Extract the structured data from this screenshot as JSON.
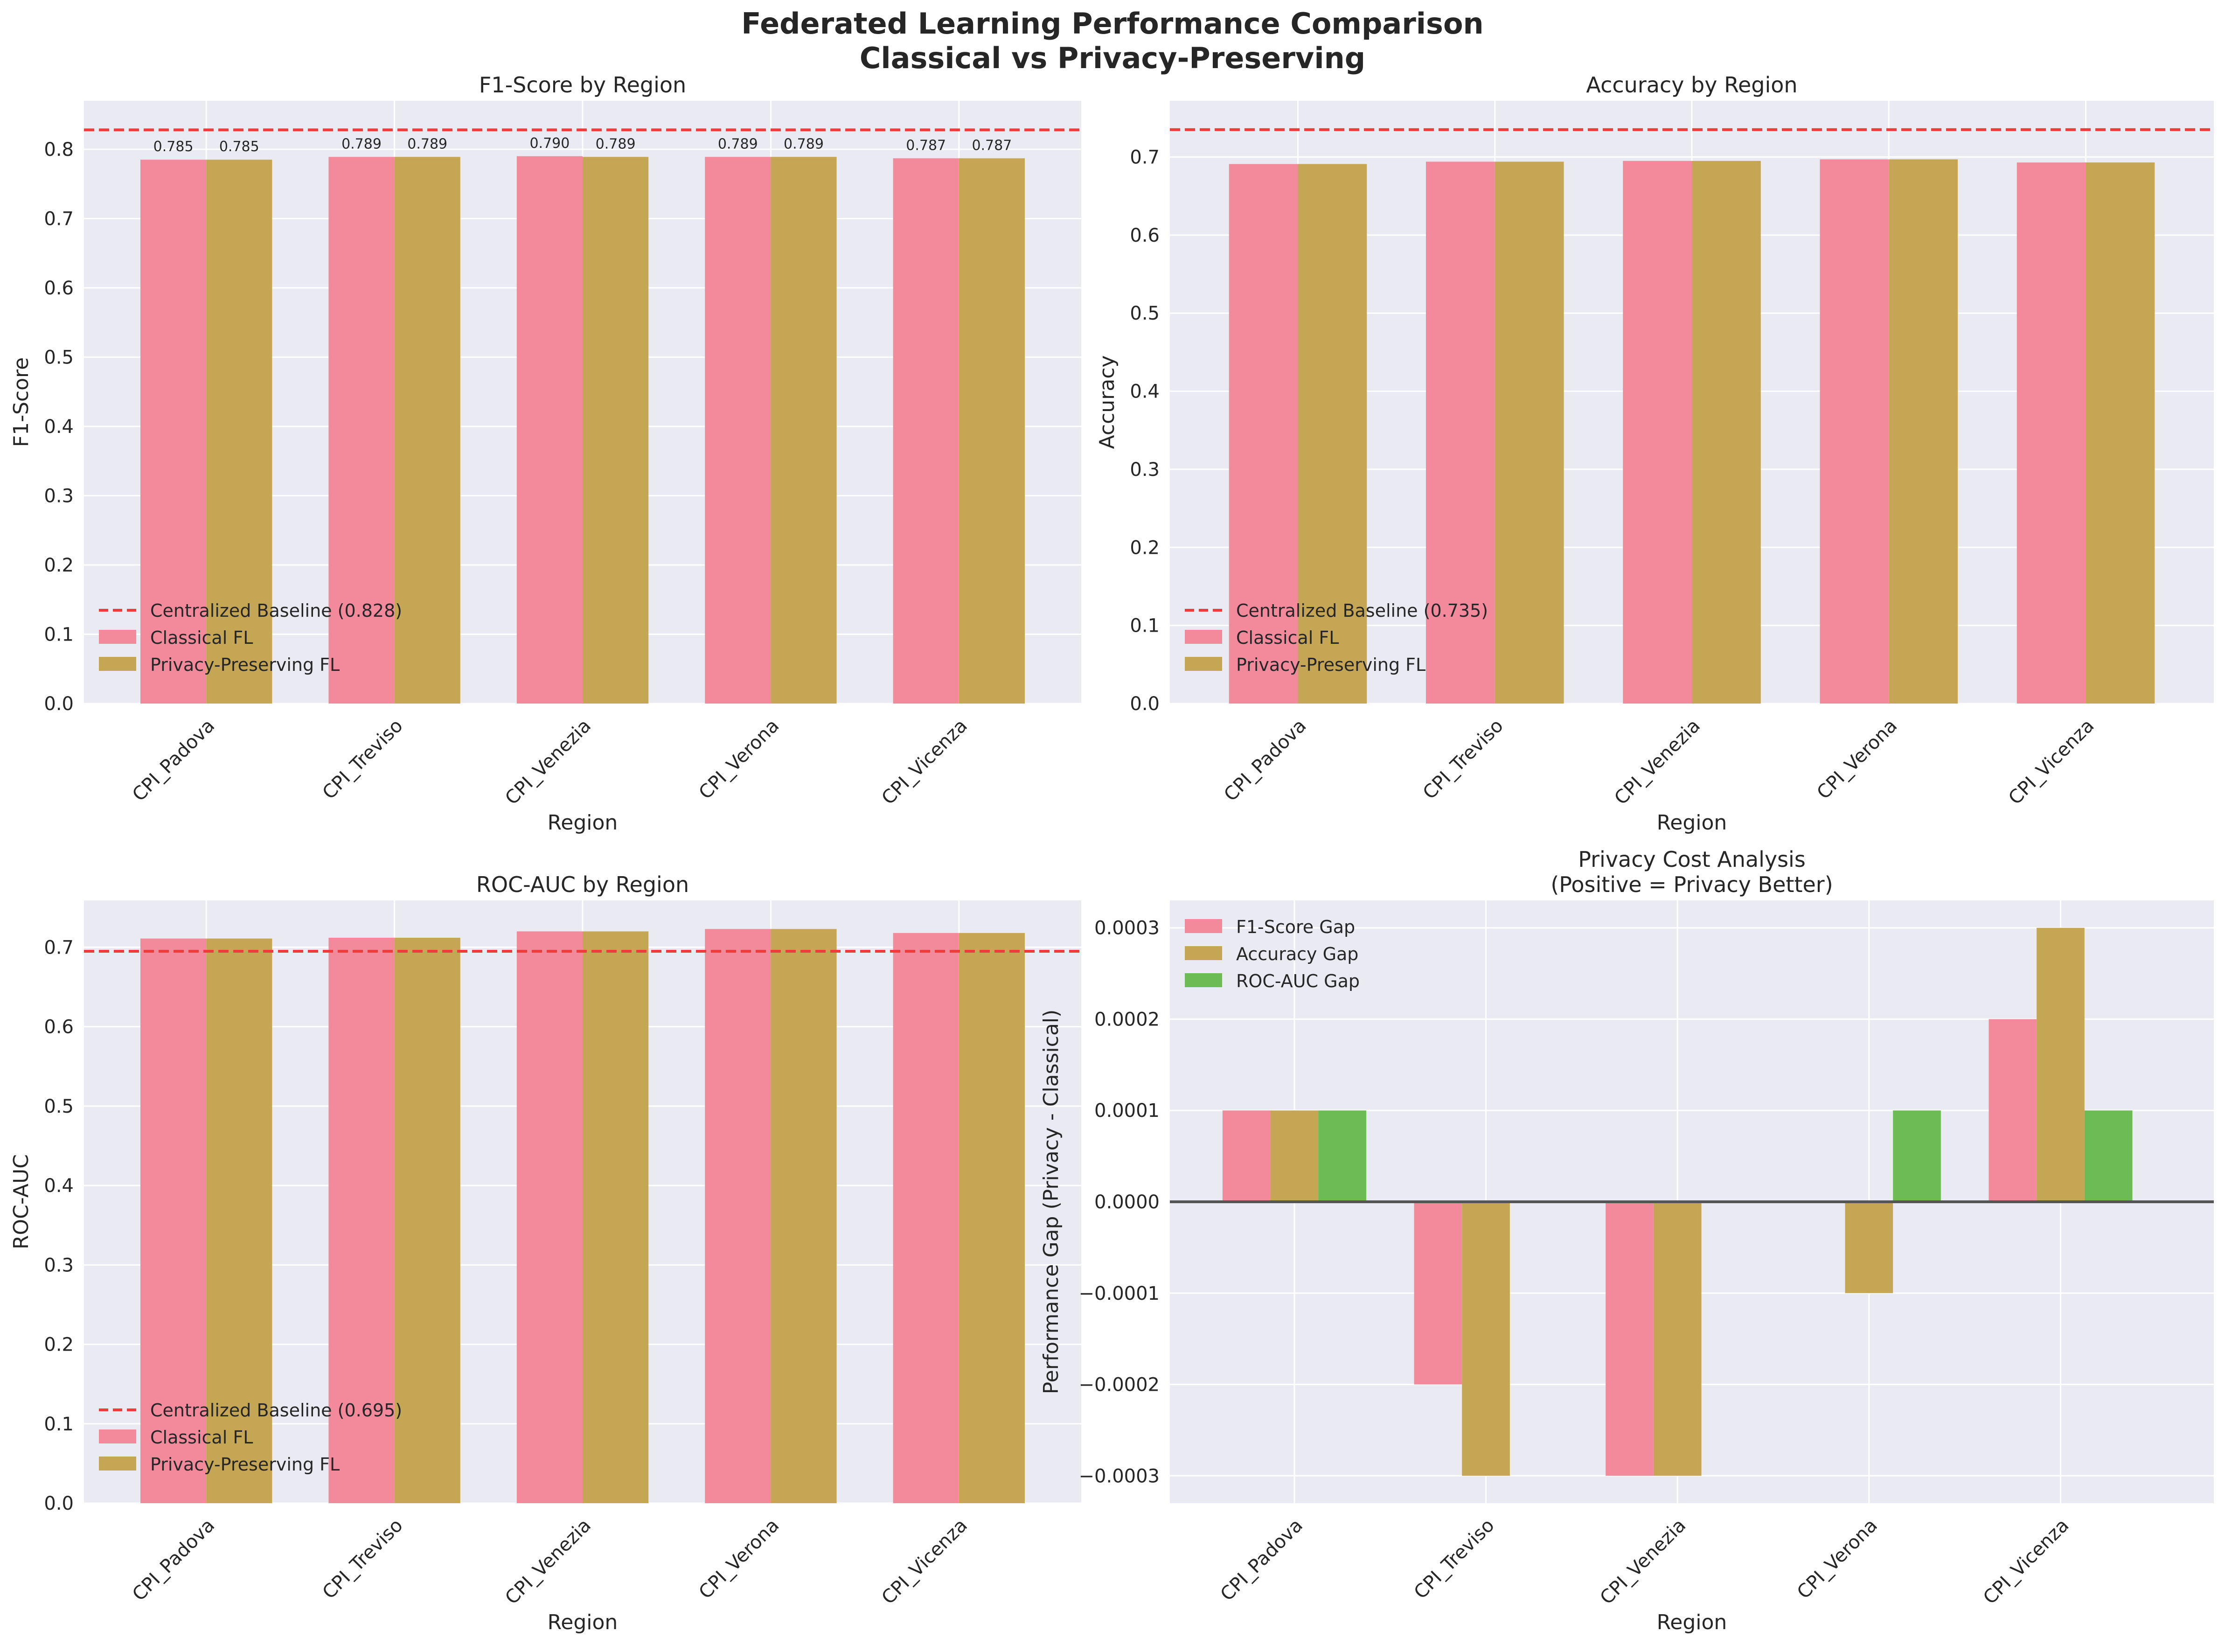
{
  "figure": {
    "title_line1": "Federated Learning Performance Comparison",
    "title_line2": "Classical vs Privacy-Preserving"
  },
  "colors": {
    "classical": "#f28a9c",
    "privacy": "#c4a655",
    "rocauc_gap": "#6cbb55",
    "baseline": "#ee3b3b",
    "plot_bg": "#eaeaf2",
    "grid": "#ffffff",
    "zero_line": "#555555"
  },
  "chart_data": [
    {
      "id": "f1",
      "type": "bar",
      "title": "F1-Score by Region",
      "xlabel": "Region",
      "ylabel": "F1-Score",
      "categories": [
        "CPI_Padova",
        "CPI_Treviso",
        "CPI_Venezia",
        "CPI_Verona",
        "CPI_Vicenza"
      ],
      "series": [
        {
          "name": "Classical FL",
          "values": [
            0.785,
            0.789,
            0.79,
            0.789,
            0.787
          ],
          "labels": [
            "0.785",
            "0.789",
            "0.790",
            "0.789",
            "0.787"
          ]
        },
        {
          "name": "Privacy-Preserving FL",
          "values": [
            0.785,
            0.789,
            0.789,
            0.789,
            0.787
          ],
          "labels": [
            "0.785",
            "0.789",
            "0.789",
            "0.789",
            "0.787"
          ]
        }
      ],
      "baseline": {
        "name": "Centralized Baseline (0.828)",
        "value": 0.828
      },
      "ylim": [
        0,
        0.87
      ],
      "yticks": [
        0.0,
        0.1,
        0.2,
        0.3,
        0.4,
        0.5,
        0.6,
        0.7,
        0.8
      ],
      "ytick_labels": [
        "0.0",
        "0.1",
        "0.2",
        "0.3",
        "0.4",
        "0.5",
        "0.6",
        "0.7",
        "0.8"
      ],
      "legend": "lower-left",
      "grid": true
    },
    {
      "id": "acc",
      "type": "bar",
      "title": "Accuracy by Region",
      "xlabel": "Region",
      "ylabel": "Accuracy",
      "categories": [
        "CPI_Padova",
        "CPI_Treviso",
        "CPI_Venezia",
        "CPI_Verona",
        "CPI_Vicenza"
      ],
      "series": [
        {
          "name": "Classical FL",
          "values": [
            0.691,
            0.694,
            0.695,
            0.697,
            0.693
          ]
        },
        {
          "name": "Privacy-Preserving FL",
          "values": [
            0.691,
            0.694,
            0.695,
            0.697,
            0.693
          ]
        }
      ],
      "baseline": {
        "name": "Centralized Baseline (0.735)",
        "value": 0.735
      },
      "ylim": [
        0,
        0.772
      ],
      "yticks": [
        0.0,
        0.1,
        0.2,
        0.3,
        0.4,
        0.5,
        0.6,
        0.7
      ],
      "ytick_labels": [
        "0.0",
        "0.1",
        "0.2",
        "0.3",
        "0.4",
        "0.5",
        "0.6",
        "0.7"
      ],
      "legend": "lower-left",
      "grid": true
    },
    {
      "id": "roc",
      "type": "bar",
      "title": "ROC-AUC by Region",
      "xlabel": "Region",
      "ylabel": "ROC-AUC",
      "categories": [
        "CPI_Padova",
        "CPI_Treviso",
        "CPI_Venezia",
        "CPI_Verona",
        "CPI_Vicenza"
      ],
      "series": [
        {
          "name": "Classical FL",
          "values": [
            0.711,
            0.712,
            0.72,
            0.723,
            0.718
          ]
        },
        {
          "name": "Privacy-Preserving FL",
          "values": [
            0.711,
            0.712,
            0.72,
            0.723,
            0.718
          ]
        }
      ],
      "baseline": {
        "name": "Centralized Baseline (0.695)",
        "value": 0.695
      },
      "ylim": [
        0,
        0.759
      ],
      "yticks": [
        0.0,
        0.1,
        0.2,
        0.3,
        0.4,
        0.5,
        0.6,
        0.7
      ],
      "ytick_labels": [
        "0.0",
        "0.1",
        "0.2",
        "0.3",
        "0.4",
        "0.5",
        "0.6",
        "0.7"
      ],
      "legend": "lower-left",
      "grid": true
    },
    {
      "id": "gap",
      "type": "bar",
      "title": "Privacy Cost Analysis",
      "subtitle": "(Positive = Privacy Better)",
      "xlabel": "Region",
      "ylabel": "Performance Gap (Privacy - Classical)",
      "categories": [
        "CPI_Padova",
        "CPI_Treviso",
        "CPI_Venezia",
        "CPI_Verona",
        "CPI_Vicenza"
      ],
      "series": [
        {
          "name": "F1-Score Gap",
          "values": [
            0.0001,
            -0.0002,
            -0.0003,
            0.0,
            0.0002
          ]
        },
        {
          "name": "Accuracy Gap",
          "values": [
            0.0001,
            -0.0003,
            -0.0003,
            -0.0001,
            0.0003
          ]
        },
        {
          "name": "ROC-AUC Gap",
          "values": [
            0.0001,
            0.0,
            0.0,
            0.0001,
            0.0001
          ]
        }
      ],
      "ylim": [
        -0.00033,
        0.00033
      ],
      "yticks": [
        -0.0003,
        -0.0002,
        -0.0001,
        0.0,
        0.0001,
        0.0002,
        0.0003
      ],
      "ytick_labels": [
        "−0.0003",
        "−0.0002",
        "−0.0001",
        "0.0000",
        "0.0001",
        "0.0002",
        "0.0003"
      ],
      "legend": "upper-left",
      "grid": true
    }
  ]
}
